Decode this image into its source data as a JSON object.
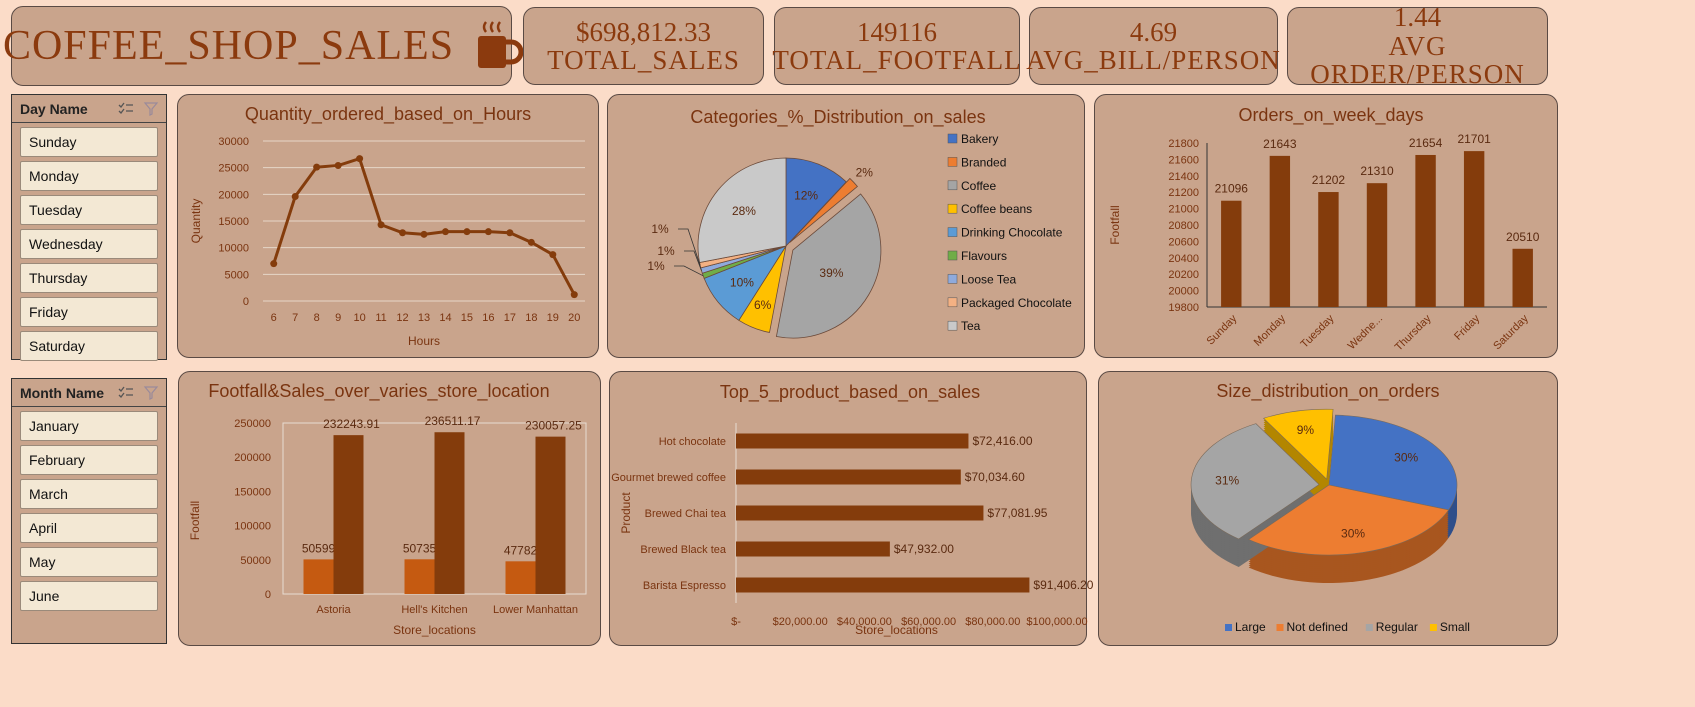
{
  "header": {
    "title": "COFFEE_SHOP_SALES"
  },
  "kpis": [
    {
      "value": "$698,812.33",
      "label": "TOTAL_SALES"
    },
    {
      "value": "149116",
      "label": "TOTAL_FOOTFALL"
    },
    {
      "value": "4.69",
      "label": "AVG_BILL/PERSON"
    },
    {
      "value": "1.44",
      "label": "AVG ORDER/PERSON"
    }
  ],
  "slicers": {
    "day": {
      "title": "Day Name",
      "items": [
        "Sunday",
        "Monday",
        "Tuesday",
        "Wednesday",
        "Thursday",
        "Friday",
        "Saturday"
      ]
    },
    "month": {
      "title": "Month Name",
      "items": [
        "January",
        "February",
        "March",
        "April",
        "May",
        "June"
      ]
    }
  },
  "colors": {
    "brown": "#843c0c",
    "orange": "#c55a11",
    "card": "#c9a48c",
    "bg": "#fbdcc8"
  },
  "chart_data": [
    {
      "type": "line",
      "title": "Quantity_ordered_based_on_Hours",
      "xlabel": "Hours",
      "ylabel": "Quantity",
      "x": [
        6,
        7,
        8,
        9,
        10,
        11,
        12,
        13,
        14,
        15,
        16,
        17,
        18,
        19,
        20
      ],
      "values": [
        7000,
        19600,
        25100,
        25400,
        26700,
        14300,
        12800,
        12500,
        13000,
        13000,
        13000,
        12800,
        11000,
        8700,
        1200
      ],
      "ylim": [
        0,
        30000
      ],
      "yticks": [
        0,
        5000,
        10000,
        15000,
        20000,
        25000,
        30000
      ]
    },
    {
      "type": "pie",
      "title": "Categories_%_Distribution_on_sales",
      "categories": [
        "Bakery",
        "Branded",
        "Coffee",
        "Coffee beans",
        "Drinking Chocolate",
        "Flavours",
        "Loose Tea",
        "Packaged Chocolate",
        "Tea"
      ],
      "values": [
        12,
        2,
        39,
        6,
        10,
        1,
        1,
        1,
        28
      ],
      "labels": [
        "12%",
        "2%",
        "39%",
        "6%",
        "10%",
        "1%",
        "1%",
        "1%",
        "28%"
      ],
      "colors": [
        "#4472c4",
        "#ed7d31",
        "#a5a5a5",
        "#ffc000",
        "#5b9bd5",
        "#70ad47",
        "#8faadc",
        "#f4b183",
        "#c9c9c9"
      ],
      "legend": "right"
    },
    {
      "type": "bar",
      "title": "Orders_on_week_days",
      "ylabel": "Footfall",
      "categories": [
        "Sunday",
        "Monday",
        "Tuesday",
        "Wedne...",
        "Thursday",
        "Friday",
        "Saturday"
      ],
      "values": [
        21096,
        21643,
        21202,
        21310,
        21654,
        21701,
        20510
      ],
      "ylim": [
        19800,
        21800
      ],
      "yticks": [
        19800,
        20000,
        20200,
        20400,
        20600,
        20800,
        21000,
        21200,
        21400,
        21600,
        21800
      ]
    },
    {
      "type": "bar",
      "title": "Footfall&Sales_over_varies_store_location",
      "xlabel": "Store_locations",
      "ylabel": "Footfall",
      "categories": [
        "Astoria",
        "Hell's Kitchen",
        "Lower Manhattan"
      ],
      "series": [
        {
          "values": [
            50599,
            50735,
            47782
          ],
          "labels": [
            "50599",
            "50735",
            "47782"
          ]
        },
        {
          "values": [
            232243.91,
            236511.17,
            230057.25
          ],
          "labels": [
            "232243.91",
            "236511.17",
            "230057.25"
          ]
        }
      ],
      "ylim": [
        0,
        250000
      ],
      "yticks": [
        0,
        50000,
        100000,
        150000,
        200000,
        250000
      ]
    },
    {
      "type": "bar",
      "orientation": "horizontal",
      "title": "Top_5_product_based_on_sales",
      "xlabel": "Store_locations",
      "ylabel": "Product",
      "categories": [
        "Hot chocolate",
        "Gourmet brewed coffee",
        "Brewed Chai tea",
        "Brewed Black tea",
        "Barista Espresso"
      ],
      "values": [
        72416,
        70034.6,
        77081.95,
        47932,
        91406.2
      ],
      "labels": [
        "$72,416.00",
        "$70,034.60",
        "$77,081.95",
        "$47,932.00",
        "$91,406.20"
      ],
      "xlim": [
        0,
        100000
      ],
      "xticks": [
        "$-",
        "$20,000.00",
        "$40,000.00",
        "$60,000.00",
        "$80,000.00",
        "$100,000.00"
      ]
    },
    {
      "type": "pie",
      "title": "Size_distribution_on_orders",
      "categories": [
        "Large",
        "Not defined",
        "Regular",
        "Small"
      ],
      "values": [
        30,
        30,
        31,
        9
      ],
      "labels": [
        "30%",
        "30%",
        "31%",
        "9%"
      ],
      "colors": [
        "#4472c4",
        "#ed7d31",
        "#a5a5a5",
        "#ffc000"
      ],
      "legend": "bottom"
    }
  ]
}
